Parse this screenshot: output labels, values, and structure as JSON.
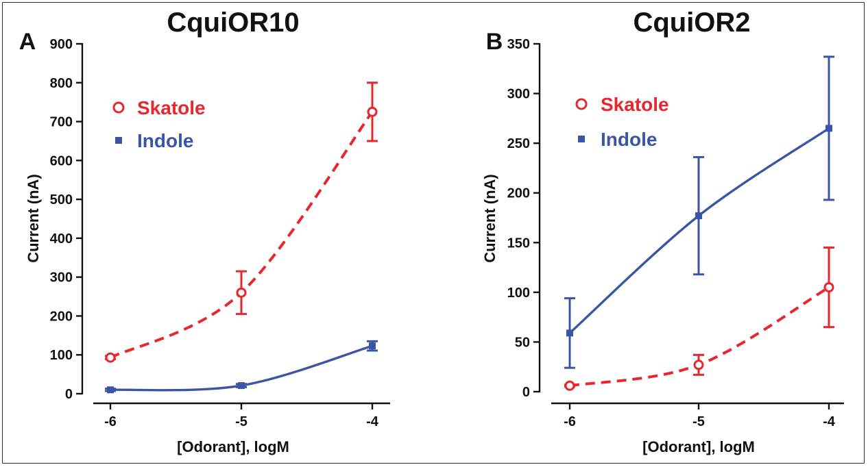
{
  "chart_data": [
    {
      "type": "line",
      "panel_letter": "A",
      "title": "CquiOR10",
      "xlabel": "[Odorant], logM",
      "ylabel": "Current (nA)",
      "x": [
        -6,
        -5,
        -4
      ],
      "x_ticks": [
        "-6",
        "-5",
        "-4"
      ],
      "y_ticks": [
        "0",
        "100",
        "200",
        "300",
        "400",
        "500",
        "600",
        "700",
        "800",
        "900"
      ],
      "ylim": [
        0,
        900
      ],
      "legend_position": "top-left",
      "grid": false,
      "series": [
        {
          "name": "Skatole",
          "color": "#e8262e",
          "marker": "open-circle",
          "line_style": "dashed",
          "values": [
            93,
            260,
            725
          ],
          "error": [
            4,
            55,
            75
          ]
        },
        {
          "name": "Indole",
          "color": "#3a55a5",
          "marker": "filled-square",
          "line_style": "solid",
          "values": [
            10,
            21,
            123
          ],
          "error": [
            3,
            4,
            12
          ]
        }
      ]
    },
    {
      "type": "line",
      "panel_letter": "B",
      "title": "CquiOR2",
      "xlabel": "[Odorant], logM",
      "ylabel": "Current (nA)",
      "x": [
        -6,
        -5,
        -4
      ],
      "x_ticks": [
        "-6",
        "-5",
        "-4"
      ],
      "y_ticks": [
        "0",
        "50",
        "100",
        "150",
        "200",
        "250",
        "300",
        "350"
      ],
      "ylim": [
        0,
        350
      ],
      "legend_position": "top-left",
      "grid": false,
      "series": [
        {
          "name": "Skatole",
          "color": "#e8262e",
          "marker": "open-circle",
          "line_style": "dashed",
          "values": [
            6,
            27,
            105
          ],
          "error": [
            1,
            10,
            40
          ]
        },
        {
          "name": "Indole",
          "color": "#3a55a5",
          "marker": "filled-square",
          "line_style": "solid",
          "values": [
            59,
            177,
            265
          ],
          "error": [
            35,
            59,
            72
          ]
        }
      ]
    }
  ]
}
